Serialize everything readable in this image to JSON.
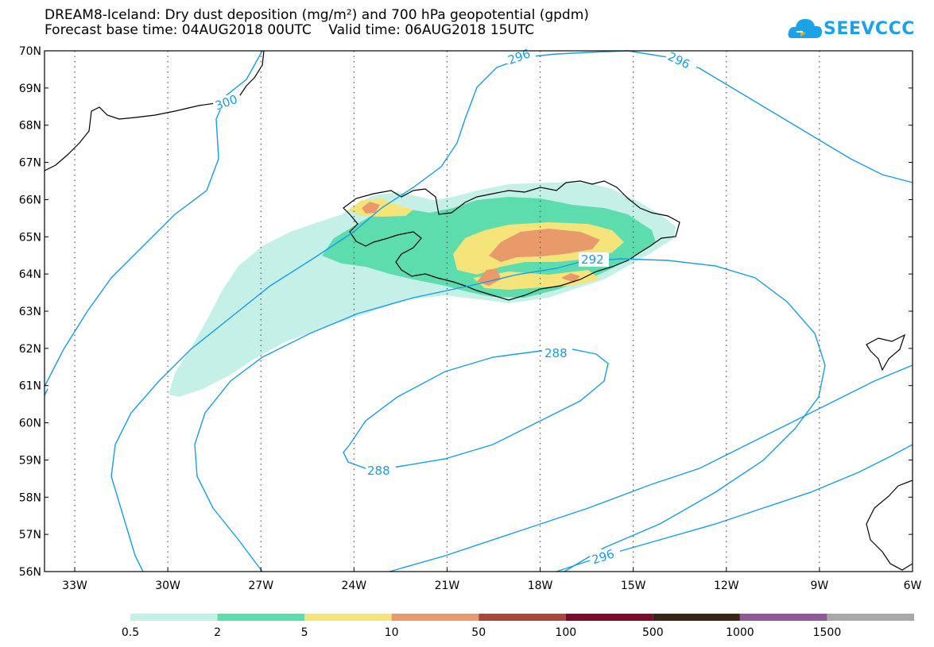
{
  "title": {
    "line1": "DREAM8-Iceland: Dry dust deposition (mg/m²) and 700 hPa geopotential (gpdm)",
    "line2": "Forecast base time: 04AUG2018 00UTC    Valid time: 06AUG2018 15UTC"
  },
  "logo": {
    "text": "SEEVCCC",
    "icon": "cloud-logo-icon",
    "color": "#1aa3e8"
  },
  "lat_labels": [
    "70N",
    "69N",
    "68N",
    "67N",
    "66N",
    "65N",
    "64N",
    "63N",
    "62N",
    "61N",
    "60N",
    "59N",
    "58N",
    "57N",
    "56N"
  ],
  "lon_labels": [
    "33W",
    "30W",
    "27W",
    "24W",
    "21W",
    "18W",
    "15W",
    "12W",
    "9W",
    "6W"
  ],
  "contour_labels": [
    "296",
    "296",
    "300",
    "292",
    "288",
    "288",
    "296"
  ],
  "legend": {
    "labels": [
      "0.5",
      "2",
      "5",
      "10",
      "50",
      "100",
      "500",
      "1000",
      "1500"
    ],
    "colors": [
      "#c4f0e8",
      "#5ddcad",
      "#f5e47a",
      "#e89a6a",
      "#a8453c",
      "#7d0a2a",
      "#3a2418",
      "#8c5b96",
      "#a9a9a9"
    ]
  },
  "colors": {
    "contour": "#1a9be6",
    "land": "#000000",
    "grid": "#555555"
  }
}
